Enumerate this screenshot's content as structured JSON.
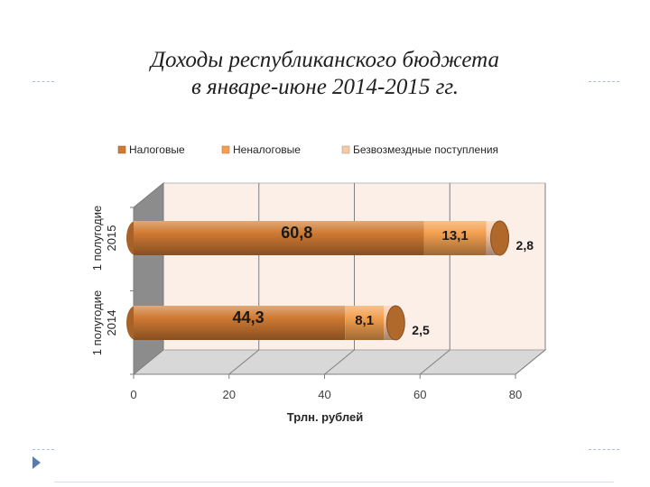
{
  "slide": {
    "title_line1": "Доходы республиканского бюджета",
    "title_line2": "в январе-июне 2014-2015 гг."
  },
  "chart_data": {
    "type": "bar",
    "orientation": "horizontal",
    "stacked": true,
    "style": "3d-cylinder",
    "categories": [
      "1 полугодие 2014",
      "1 полугодие 2015"
    ],
    "series": [
      {
        "name": "Налоговые",
        "values": [
          44.3,
          60.8
        ],
        "labels": [
          "44,3",
          "60,8"
        ],
        "color": "#d07a33"
      },
      {
        "name": "Неналоговые",
        "values": [
          8.1,
          13.1
        ],
        "labels": [
          "8,1",
          "13,1"
        ],
        "color": "#f3a050"
      },
      {
        "name": "Безвозмездные поступления",
        "values": [
          2.5,
          2.8
        ],
        "labels": [
          "2,5",
          "2,8"
        ],
        "color": "#f8c9a9"
      }
    ],
    "category_labels": [
      [
        "1 полугодие",
        "2014"
      ],
      [
        "1 полугодие",
        "2015"
      ]
    ],
    "xaxis": {
      "min": 0,
      "max": 80,
      "ticks": [
        0,
        20,
        40,
        60,
        80
      ],
      "tick_labels": [
        "0",
        "20",
        "40",
        "60",
        "80"
      ]
    },
    "xlabel": "Трлн. рублей",
    "ylabel": "",
    "legend": "top",
    "grid": true,
    "colors": {
      "wall": "#fcefe8",
      "side_wall": "#8c8c8c",
      "floor": "#d8d8d8",
      "grid": "#7f7f7f"
    }
  }
}
